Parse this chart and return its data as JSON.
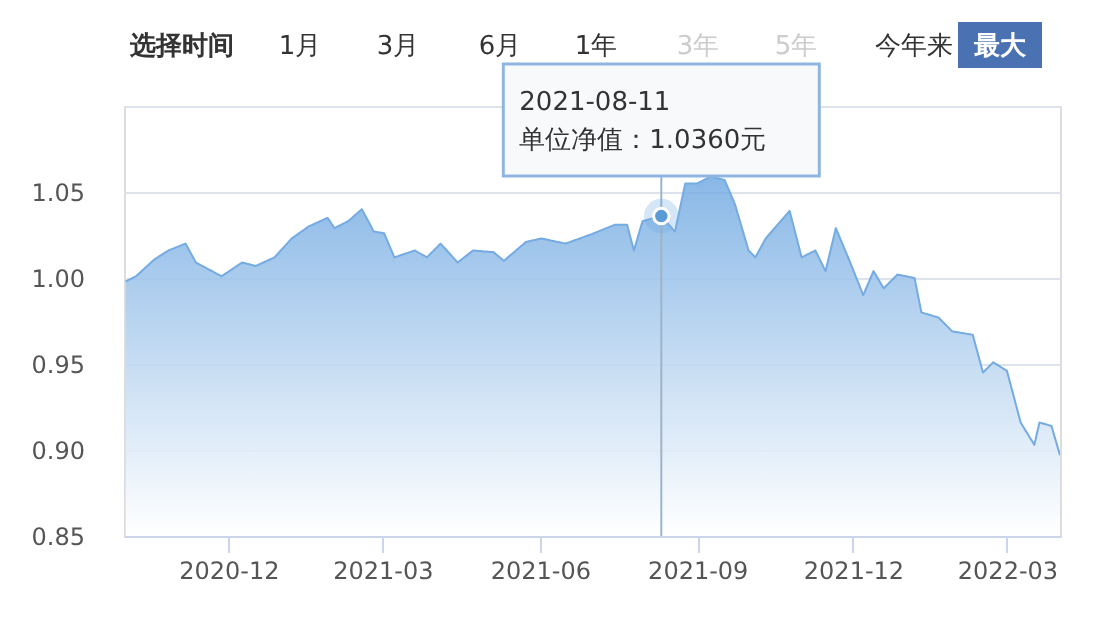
{
  "chart_data": {
    "type": "area",
    "annotations": [
      "选择时间",
      "1月",
      "3月",
      "6月",
      "1年",
      "3年",
      "5年",
      "今年来",
      "最大",
      {
        "text": "2021-08-11\n单位净值：1.0360元",
        "x": "2021-08-11",
        "y": 1.036
      }
    ],
    "ref_lines": [
      {
        "axis": "x",
        "value": "2021-08-11",
        "color": "#9fb3c8"
      }
    ],
    "x": [
      "2020-10-02",
      "2020-10-08",
      "2020-10-19",
      "2020-10-27",
      "2020-11-06",
      "2020-11-12",
      "2020-11-27",
      "2020-12-09",
      "2020-12-17",
      "2020-12-28",
      "2021-01-07",
      "2021-01-17",
      "2021-01-28",
      "2021-02-01",
      "2021-02-09",
      "2021-02-17",
      "2021-02-24",
      "2021-03-02",
      "2021-03-08",
      "2021-03-20",
      "2021-03-27",
      "2021-04-04",
      "2021-04-14",
      "2021-04-23",
      "2021-05-05",
      "2021-05-11",
      "2021-05-24",
      "2021-06-02",
      "2021-06-16",
      "2021-06-30",
      "2021-07-15",
      "2021-07-22",
      "2021-07-26",
      "2021-07-31",
      "2021-08-11",
      "2021-08-19",
      "2021-08-25",
      "2021-09-01",
      "2021-09-09",
      "2021-09-17",
      "2021-09-23",
      "2021-10-01",
      "2021-10-05",
      "2021-10-11",
      "2021-10-25",
      "2021-11-01",
      "2021-11-09",
      "2021-11-15",
      "2021-11-21",
      "2021-11-29",
      "2021-12-07",
      "2021-12-13",
      "2021-12-19",
      "2021-12-27",
      "2022-01-06",
      "2022-01-10",
      "2022-01-20",
      "2022-01-28",
      "2022-02-09",
      "2022-02-15",
      "2022-02-21",
      "2022-03-01",
      "2022-03-09",
      "2022-03-17",
      "2022-03-20",
      "2022-03-27",
      "2022-04-01"
    ],
    "series": [
      {
        "color": "#74abe2",
        "values": [
          0.998,
          1.001,
          1.011,
          1.016,
          1.02,
          1.009,
          1.001,
          1.009,
          1.007,
          1.012,
          1.023,
          1.03,
          1.035,
          1.029,
          1.033,
          1.04,
          1.027,
          1.026,
          1.012,
          1.016,
          1.012,
          1.02,
          1.009,
          1.016,
          1.015,
          1.01,
          1.021,
          1.023,
          1.02,
          1.025,
          1.031,
          1.031,
          1.016,
          1.033,
          1.036,
          1.027,
          1.055,
          1.055,
          1.059,
          1.057,
          1.043,
          1.016,
          1.012,
          1.023,
          1.039,
          1.012,
          1.016,
          1.004,
          1.029,
          1.01,
          0.99,
          1.004,
          0.994,
          1.002,
          1.0,
          0.98,
          0.977,
          0.969,
          0.967,
          0.945,
          0.951,
          0.946,
          0.916,
          0.903,
          0.916,
          0.914,
          0.897
        ]
      }
    ],
    "xlim": [
      "2020-10-01",
      "2022-04-01"
    ],
    "xticks": [
      "2020-12",
      "2021-03",
      "2021-06",
      "2021-09",
      "2021-12",
      "2022-03"
    ],
    "ylim": [
      0.85,
      1.1
    ],
    "yticks": [
      {
        "value": 0.85,
        "label": "0.85"
      },
      {
        "value": 0.9,
        "label": "0.90"
      },
      {
        "value": 0.95,
        "label": "0.95"
      },
      {
        "value": 1.0,
        "label": "1.00"
      },
      {
        "value": 1.05,
        "label": "1.05"
      },
      {
        "value": 1.1,
        "label": null
      }
    ],
    "grid": "y",
    "legend": false,
    "marker": "none",
    "line_style": "solid"
  }
}
